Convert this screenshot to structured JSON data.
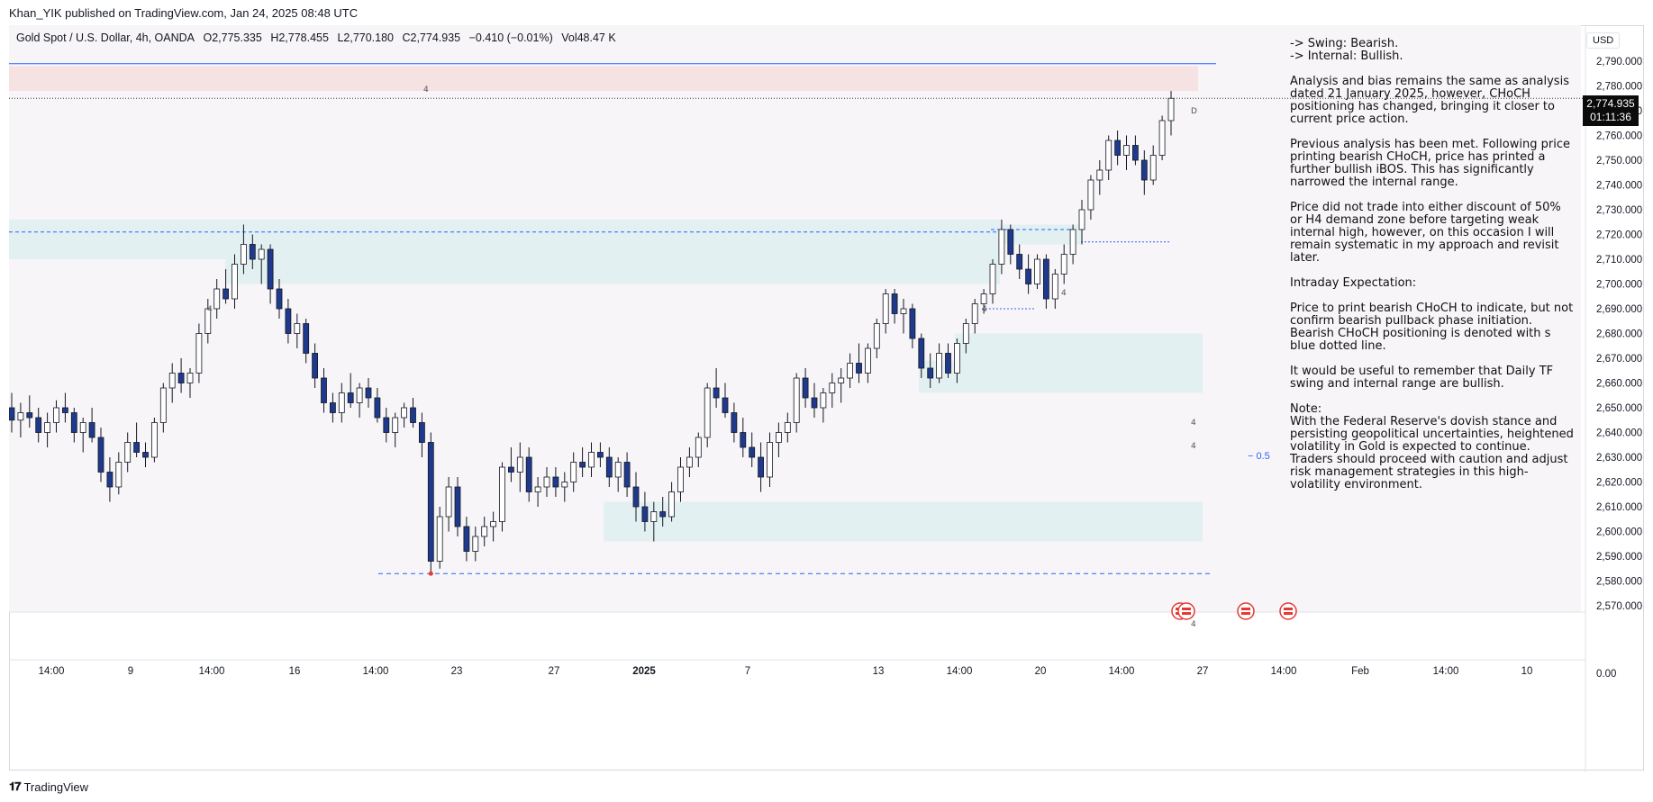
{
  "header": {
    "published": "Khan_YIK published on TradingView.com, Jan 24, 2025 08:48 UTC"
  },
  "legend": {
    "symbol": "Gold Spot / U.S. Dollar, 4h, OANDA",
    "open": "O2,775.335",
    "high": "H2,778.455",
    "low": "L2,770.180",
    "close": "C2,774.935",
    "change": "−0.410 (−0.01%)",
    "volume": "Vol48.47 K"
  },
  "currency_button": "USD",
  "price_label": {
    "price": "2,774.935",
    "countdown": "01:11:36"
  },
  "notes": [
    "-> Swing:  Bearish.",
    "-> Internal:  Bullish.",
    "Analysis and bias remains the same as analysis dated 21 January 2025, however, CHoCH positioning has changed, bringing it closer to current price action.",
    "Previous analysis has been met.  Following price printing bearish CHoCH, price has printed a further bullish iBOS.  This has significantly narrowed the internal range.",
    "Price did not trade into either discount of 50% or H4 demand zone before targeting weak internal high, however, on this occasion I will remain systematic in my approach and revisit later.",
    "Intraday Expectation:",
    "Price to print bearish CHoCH to indicate, but not confirm bearish pullback phase initiation. Bearish CHoCH positioning is denoted with s blue dotted line.",
    "It would be useful to remember that Daily TF swing and internal range are bullish.",
    "Note:",
    "With the Federal Reserve's dovish stance and persisting geopolitical uncertainties, heightened volatility in Gold is expected to continue. Traders should proceed with caution and adjust risk management strategies in this high-volatility environment."
  ],
  "brand": "TradingView",
  "chart_data": {
    "type": "candlestick",
    "symbol": "XAUUSD",
    "timeframe": "4h",
    "ylim": [
      2565,
      2795
    ],
    "y_ticks": [
      2790,
      2780,
      2770,
      2760,
      2750,
      2740,
      2730,
      2720,
      2710,
      2700,
      2690,
      2680,
      2670,
      2660,
      2650,
      2640,
      2630,
      2620,
      2610,
      2600,
      2590,
      2580,
      2570
    ],
    "y_tick_labels": [
      "2,790.000",
      "2,780.000",
      "2,770.000",
      "2,760.000",
      "2,750.000",
      "2,740.000",
      "2,730.000",
      "2,720.000",
      "2,710.000",
      "2,700.000",
      "2,690.000",
      "2,680.000",
      "2,670.000",
      "2,660.000",
      "2,650.000",
      "2,640.000",
      "2,630.000",
      "2,620.000",
      "2,610.000",
      "2,600.000",
      "2,590.000",
      "2,580.000",
      "2,570.000"
    ],
    "volume_axis_label": "0.00",
    "x_tick_labels": [
      "14:00",
      "9",
      "14:00",
      "16",
      "14:00",
      "23",
      "27",
      "2025",
      "7",
      "13",
      "14:00",
      "20",
      "14:00",
      "27",
      "14:00",
      "Feb",
      "14:00",
      "10"
    ],
    "zone_labels": [
      "4",
      "D",
      "4",
      "4",
      "4",
      "4",
      "4",
      "4",
      "4"
    ],
    "fib_label": "− 0.5",
    "levels": {
      "supply_top": 2789,
      "supply_zone": [
        2778,
        2788
      ],
      "swing_high": 2721,
      "left_zone": [
        2710,
        2726
      ],
      "mid_zone": [
        2700,
        2726
      ],
      "recent_supply": [
        2716,
        2724
      ],
      "demand1": [
        2668,
        2680
      ],
      "demand2": [
        2656,
        2669
      ],
      "demand3": [
        2596,
        2612
      ],
      "swing_low": 2583,
      "choch_line": 2722,
      "internal_low": 2690,
      "weak_high_line": 2717
    },
    "candles": [
      [
        2650,
        2656,
        2640,
        2645
      ],
      [
        2645,
        2652,
        2638,
        2648
      ],
      [
        2648,
        2655,
        2642,
        2646
      ],
      [
        2646,
        2650,
        2636,
        2640
      ],
      [
        2640,
        2648,
        2634,
        2644
      ],
      [
        2644,
        2653,
        2640,
        2650
      ],
      [
        2650,
        2656,
        2644,
        2648
      ],
      [
        2648,
        2650,
        2636,
        2640
      ],
      [
        2640,
        2646,
        2632,
        2644
      ],
      [
        2644,
        2650,
        2636,
        2638
      ],
      [
        2638,
        2642,
        2620,
        2624
      ],
      [
        2624,
        2630,
        2612,
        2618
      ],
      [
        2618,
        2632,
        2615,
        2628
      ],
      [
        2628,
        2640,
        2624,
        2636
      ],
      [
        2636,
        2644,
        2630,
        2632
      ],
      [
        2632,
        2636,
        2626,
        2630
      ],
      [
        2630,
        2646,
        2628,
        2644
      ],
      [
        2644,
        2660,
        2640,
        2658
      ],
      [
        2658,
        2668,
        2652,
        2664
      ],
      [
        2664,
        2670,
        2656,
        2660
      ],
      [
        2660,
        2666,
        2654,
        2664
      ],
      [
        2664,
        2684,
        2660,
        2680
      ],
      [
        2680,
        2694,
        2676,
        2690
      ],
      [
        2690,
        2702,
        2686,
        2698
      ],
      [
        2698,
        2706,
        2692,
        2694
      ],
      [
        2694,
        2712,
        2690,
        2708
      ],
      [
        2708,
        2724,
        2704,
        2716
      ],
      [
        2716,
        2720,
        2706,
        2710
      ],
      [
        2710,
        2716,
        2700,
        2714
      ],
      [
        2714,
        2716,
        2692,
        2698
      ],
      [
        2698,
        2702,
        2686,
        2690
      ],
      [
        2690,
        2694,
        2676,
        2680
      ],
      [
        2680,
        2688,
        2674,
        2684
      ],
      [
        2684,
        2686,
        2668,
        2672
      ],
      [
        2672,
        2676,
        2658,
        2662
      ],
      [
        2662,
        2666,
        2648,
        2652
      ],
      [
        2652,
        2656,
        2644,
        2648
      ],
      [
        2648,
        2660,
        2644,
        2656
      ],
      [
        2656,
        2664,
        2650,
        2652
      ],
      [
        2652,
        2660,
        2646,
        2658
      ],
      [
        2658,
        2662,
        2650,
        2654
      ],
      [
        2654,
        2658,
        2644,
        2646
      ],
      [
        2646,
        2650,
        2636,
        2640
      ],
      [
        2640,
        2648,
        2634,
        2646
      ],
      [
        2646,
        2652,
        2642,
        2650
      ],
      [
        2650,
        2654,
        2642,
        2644
      ],
      [
        2644,
        2648,
        2630,
        2636
      ],
      [
        2636,
        2640,
        2583,
        2588
      ],
      [
        2588,
        2610,
        2585,
        2606
      ],
      [
        2606,
        2622,
        2600,
        2618
      ],
      [
        2618,
        2622,
        2598,
        2602
      ],
      [
        2602,
        2606,
        2588,
        2592
      ],
      [
        2592,
        2602,
        2588,
        2598
      ],
      [
        2598,
        2606,
        2594,
        2602
      ],
      [
        2602,
        2608,
        2596,
        2604
      ],
      [
        2604,
        2628,
        2600,
        2626
      ],
      [
        2626,
        2634,
        2620,
        2624
      ],
      [
        2624,
        2636,
        2616,
        2630
      ],
      [
        2630,
        2634,
        2612,
        2616
      ],
      [
        2616,
        2622,
        2610,
        2618
      ],
      [
        2618,
        2626,
        2614,
        2622
      ],
      [
        2622,
        2626,
        2614,
        2618
      ],
      [
        2618,
        2624,
        2612,
        2620
      ],
      [
        2620,
        2632,
        2616,
        2628
      ],
      [
        2628,
        2634,
        2622,
        2626
      ],
      [
        2626,
        2636,
        2622,
        2632
      ],
      [
        2632,
        2636,
        2626,
        2630
      ],
      [
        2630,
        2634,
        2618,
        2622
      ],
      [
        2622,
        2630,
        2616,
        2628
      ],
      [
        2628,
        2632,
        2614,
        2618
      ],
      [
        2618,
        2624,
        2604,
        2610
      ],
      [
        2610,
        2616,
        2600,
        2604
      ],
      [
        2604,
        2612,
        2596,
        2608
      ],
      [
        2608,
        2614,
        2602,
        2606
      ],
      [
        2606,
        2620,
        2604,
        2616
      ],
      [
        2616,
        2630,
        2612,
        2626
      ],
      [
        2626,
        2634,
        2622,
        2630
      ],
      [
        2630,
        2640,
        2626,
        2638
      ],
      [
        2638,
        2660,
        2634,
        2658
      ],
      [
        2658,
        2666,
        2650,
        2654
      ],
      [
        2654,
        2660,
        2646,
        2648
      ],
      [
        2648,
        2652,
        2636,
        2640
      ],
      [
        2640,
        2646,
        2630,
        2634
      ],
      [
        2634,
        2640,
        2626,
        2630
      ],
      [
        2630,
        2636,
        2616,
        2622
      ],
      [
        2622,
        2640,
        2618,
        2636
      ],
      [
        2636,
        2644,
        2630,
        2640
      ],
      [
        2640,
        2648,
        2636,
        2644
      ],
      [
        2644,
        2664,
        2640,
        2662
      ],
      [
        2662,
        2666,
        2650,
        2654
      ],
      [
        2654,
        2660,
        2646,
        2650
      ],
      [
        2650,
        2658,
        2644,
        2656
      ],
      [
        2656,
        2664,
        2650,
        2660
      ],
      [
        2660,
        2666,
        2652,
        2662
      ],
      [
        2662,
        2672,
        2658,
        2668
      ],
      [
        2668,
        2676,
        2660,
        2664
      ],
      [
        2664,
        2676,
        2660,
        2674
      ],
      [
        2674,
        2686,
        2670,
        2684
      ],
      [
        2684,
        2698,
        2680,
        2696
      ],
      [
        2696,
        2698,
        2684,
        2688
      ],
      [
        2688,
        2694,
        2680,
        2690
      ],
      [
        2690,
        2692,
        2674,
        2678
      ],
      [
        2678,
        2680,
        2662,
        2666
      ],
      [
        2666,
        2672,
        2658,
        2662
      ],
      [
        2662,
        2676,
        2660,
        2672
      ],
      [
        2672,
        2676,
        2662,
        2664
      ],
      [
        2664,
        2678,
        2660,
        2676
      ],
      [
        2676,
        2686,
        2672,
        2684
      ],
      [
        2684,
        2694,
        2680,
        2692
      ],
      [
        2692,
        2698,
        2688,
        2696
      ],
      [
        2696,
        2710,
        2692,
        2708
      ],
      [
        2708,
        2726,
        2704,
        2722
      ],
      [
        2722,
        2724,
        2708,
        2712
      ],
      [
        2712,
        2716,
        2702,
        2706
      ],
      [
        2706,
        2712,
        2696,
        2700
      ],
      [
        2700,
        2712,
        2698,
        2710
      ],
      [
        2710,
        2712,
        2690,
        2694
      ],
      [
        2694,
        2706,
        2690,
        2704
      ],
      [
        2704,
        2716,
        2700,
        2712
      ],
      [
        2712,
        2724,
        2708,
        2722
      ],
      [
        2722,
        2734,
        2716,
        2730
      ],
      [
        2730,
        2744,
        2726,
        2742
      ],
      [
        2742,
        2750,
        2736,
        2746
      ],
      [
        2746,
        2760,
        2742,
        2758
      ],
      [
        2758,
        2762,
        2748,
        2752
      ],
      [
        2752,
        2760,
        2746,
        2756
      ],
      [
        2756,
        2760,
        2748,
        2750
      ],
      [
        2750,
        2754,
        2736,
        2742
      ],
      [
        2742,
        2756,
        2740,
        2752
      ],
      [
        2752,
        2768,
        2750,
        2766
      ],
      [
        2766,
        2778,
        2760,
        2775
      ]
    ]
  }
}
